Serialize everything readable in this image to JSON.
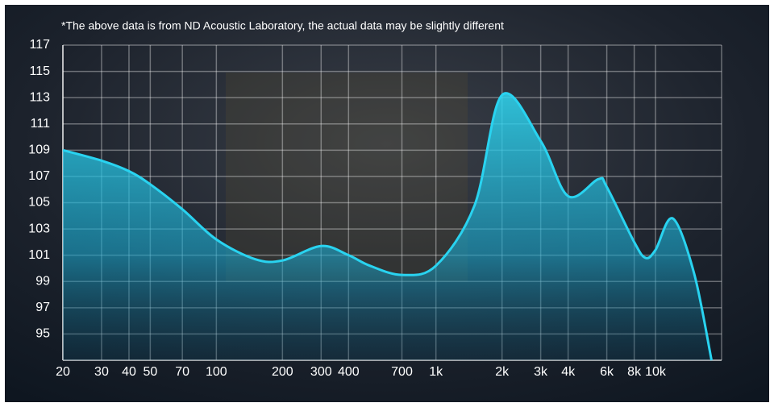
{
  "chart_data": {
    "type": "area",
    "note": "*The above data is from ND Acoustic Laboratory, the actual data may be slightly different",
    "x": [
      20,
      30,
      40,
      50,
      70,
      100,
      150,
      200,
      300,
      400,
      500,
      700,
      1000,
      1500,
      2000,
      3000,
      4000,
      5500,
      6000,
      8000,
      9000,
      10000,
      12000,
      15000,
      18000
    ],
    "values": [
      109,
      108.2,
      107.4,
      106.4,
      104.5,
      102.2,
      100.7,
      100.6,
      101.7,
      101,
      100.2,
      99.5,
      100.2,
      104.8,
      113.2,
      109.7,
      105.5,
      106.8,
      106.2,
      102,
      100.8,
      101.4,
      103.8,
      99.6,
      93
    ],
    "color": "#29d3f0",
    "xscale": "log",
    "xlim": [
      20,
      20000
    ],
    "xticks": [
      20,
      30,
      40,
      50,
      70,
      100,
      200,
      300,
      400,
      700,
      {
        "value": 1000,
        "label": "1k"
      },
      {
        "value": 2000,
        "label": "2k"
      },
      {
        "value": 3000,
        "label": "3k"
      },
      {
        "value": 4000,
        "label": "4k"
      },
      {
        "value": 6000,
        "label": "6k"
      },
      {
        "value": 8000,
        "label": "8k"
      },
      {
        "value": 10000,
        "label": "10k"
      }
    ],
    "ylim": [
      93,
      117
    ],
    "yticks": [
      95,
      97,
      99,
      101,
      103,
      105,
      107,
      109,
      111,
      113,
      115,
      117
    ],
    "grid": true
  }
}
